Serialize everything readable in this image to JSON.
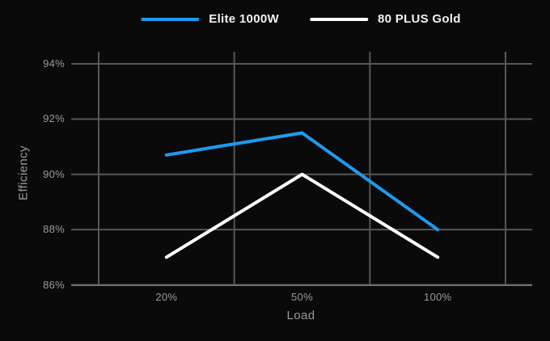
{
  "chart_data": {
    "type": "line",
    "categories": [
      "20%",
      "50%",
      "100%"
    ],
    "series": [
      {
        "name": "Elite 1000W",
        "color": "#1d9bf0",
        "values": [
          90.7,
          91.5,
          88
        ]
      },
      {
        "name": "80 PLUS Gold",
        "color": "#ffffff",
        "values": [
          87,
          90,
          87
        ]
      }
    ],
    "xlabel": "Load",
    "ylabel": "Efficiency",
    "ylim": [
      86,
      94
    ],
    "yticks": [
      86,
      88,
      90,
      92,
      94
    ],
    "ytick_labels": [
      "86%",
      "88%",
      "90%",
      "92%",
      "94%"
    ],
    "legend_position": "top-center",
    "grid": true,
    "colors": {
      "background": "#0a0a0a",
      "grid": "#565656",
      "axis": "#6e6e6e",
      "tick_text": "#9a9a9a",
      "axis_title_text": "#9a9a9a",
      "legend_text": "#f2f2f2"
    }
  }
}
